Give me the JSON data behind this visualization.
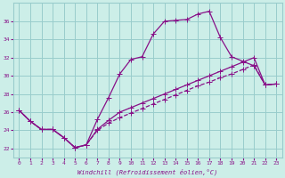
{
  "xlabel": "Windchill (Refroidissement éolien,°C)",
  "bg_color": "#cceee8",
  "line_color": "#881088",
  "grid_color": "#99cccc",
  "x_ticks": [
    0,
    1,
    2,
    3,
    4,
    5,
    6,
    7,
    8,
    9,
    10,
    11,
    12,
    13,
    14,
    15,
    16,
    17,
    18,
    19,
    20,
    21,
    22,
    23
  ],
  "y_ticks": [
    22,
    24,
    26,
    28,
    30,
    32,
    34,
    36
  ],
  "ylim": [
    21.0,
    38.0
  ],
  "xlim": [
    -0.5,
    23.5
  ],
  "line1_x": [
    0,
    1,
    2,
    3,
    4,
    5,
    6,
    7,
    8,
    9,
    10,
    11,
    12,
    13,
    14,
    15,
    16,
    17,
    18,
    19,
    20,
    21,
    22,
    23
  ],
  "line1_y": [
    26.2,
    25.0,
    24.1,
    24.1,
    23.2,
    22.1,
    22.4,
    25.2,
    27.6,
    30.2,
    31.8,
    32.1,
    34.6,
    36.0,
    36.1,
    36.2,
    36.8,
    37.1,
    34.2,
    32.1,
    31.6,
    31.1,
    29.0,
    29.1
  ],
  "line2_x": [
    0,
    1,
    2,
    3,
    4,
    5,
    6,
    7,
    8,
    9,
    10,
    11,
    12,
    13,
    14,
    15,
    16,
    17,
    18,
    19,
    20,
    21,
    22,
    23
  ],
  "line2_y": [
    26.2,
    25.0,
    24.1,
    24.1,
    23.2,
    22.1,
    22.4,
    24.1,
    25.1,
    26.0,
    26.5,
    27.0,
    27.5,
    28.0,
    28.5,
    29.0,
    29.5,
    30.0,
    30.5,
    31.0,
    31.5,
    32.0,
    29.0,
    29.1
  ],
  "line3_x": [
    0,
    1,
    2,
    3,
    4,
    5,
    6,
    7,
    8,
    9,
    10,
    11,
    12,
    13,
    14,
    15,
    16,
    17,
    18,
    19,
    20,
    21,
    22,
    23
  ],
  "line3_y": [
    26.2,
    25.0,
    24.1,
    24.1,
    23.2,
    22.1,
    22.4,
    24.0,
    24.8,
    25.4,
    25.9,
    26.4,
    26.9,
    27.4,
    27.9,
    28.4,
    28.9,
    29.3,
    29.8,
    30.2,
    30.7,
    31.2,
    29.0,
    29.1
  ]
}
